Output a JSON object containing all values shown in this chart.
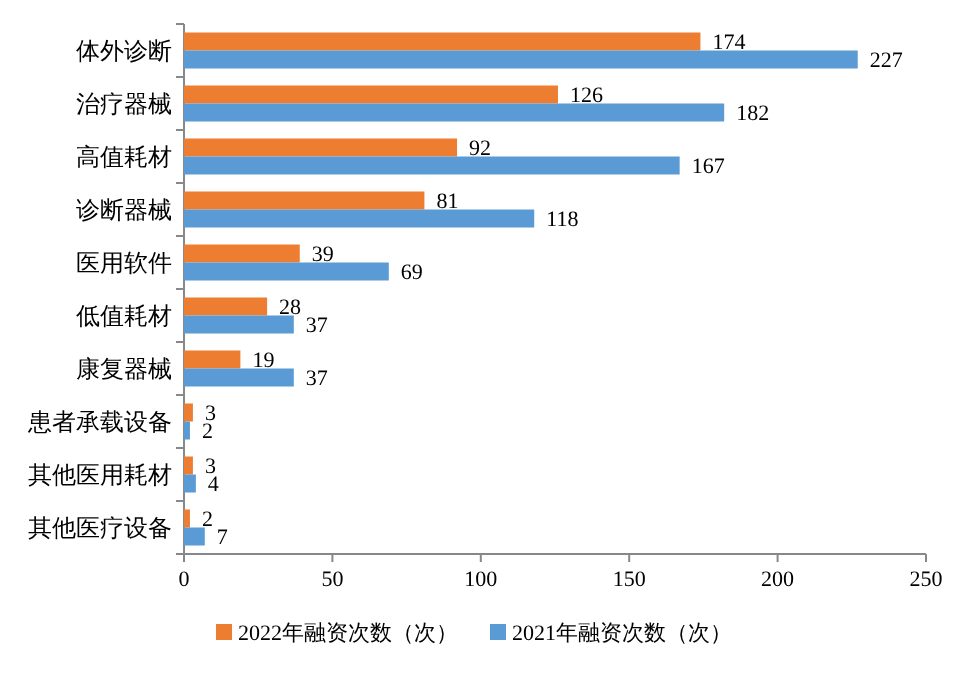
{
  "chart_data": {
    "type": "bar",
    "orientation": "horizontal",
    "categories": [
      "体外诊断",
      "治疗器械",
      "高值耗材",
      "诊断器械",
      "医用软件",
      "低值耗材",
      "康复器械",
      "患者承载设备",
      "其他医用耗材",
      "其他医疗设备"
    ],
    "series": [
      {
        "name": "2022年融资次数（次）",
        "color": "#ed7d31",
        "values": [
          174,
          126,
          92,
          81,
          39,
          28,
          19,
          3,
          3,
          2
        ]
      },
      {
        "name": "2021年融资次数（次）",
        "color": "#5b9bd5",
        "values": [
          227,
          182,
          167,
          118,
          69,
          37,
          37,
          2,
          4,
          7
        ]
      }
    ],
    "xlim": [
      0,
      250
    ],
    "xticks": [
      0,
      50,
      100,
      150,
      200,
      250
    ],
    "data_labels": true,
    "legend": "bottom"
  }
}
